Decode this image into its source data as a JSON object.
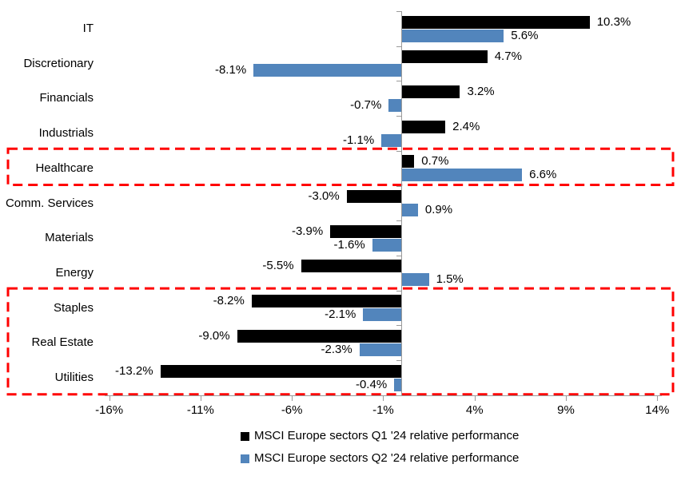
{
  "chart_data": {
    "type": "bar",
    "orientation": "horizontal",
    "title": "",
    "xlabel": "",
    "ylabel": "",
    "grid": false,
    "legend_position": "bottom",
    "categories": [
      "IT",
      "Discretionary",
      "Financials",
      "Industrials",
      "Healthcare",
      "Comm. Services",
      "Materials",
      "Energy",
      "Staples",
      "Real Estate",
      "Utilities"
    ],
    "series": [
      {
        "name": "MSCI Europe sectors Q1 '24 relative performance",
        "color": "#000000",
        "values": [
          10.3,
          4.7,
          3.2,
          2.4,
          0.7,
          -3.0,
          -3.9,
          -5.5,
          -8.2,
          -9.0,
          -13.2
        ],
        "labels": [
          "10.3%",
          "4.7%",
          "3.2%",
          "2.4%",
          "0.7%",
          "-3.0%",
          "-3.9%",
          "-5.5%",
          "-8.2%",
          "-9.0%",
          "-13.2%"
        ]
      },
      {
        "name": "MSCI Europe sectors Q2 '24 relative performance",
        "color": "#5285BC",
        "values": [
          5.6,
          -8.1,
          -0.7,
          -1.1,
          6.6,
          0.9,
          -1.6,
          1.5,
          -2.1,
          -2.3,
          -0.4
        ],
        "labels": [
          "5.6%",
          "-8.1%",
          "-0.7%",
          "-1.1%",
          "6.6%",
          "0.9%",
          "-1.6%",
          "1.5%",
          "-2.1%",
          "-2.3%",
          "-0.4%"
        ]
      }
    ],
    "x_axis": {
      "ticks": [
        -16,
        -11,
        -6,
        -1,
        4,
        9,
        14
      ],
      "tick_labels": [
        "-16%",
        "-11%",
        "-6%",
        "-1%",
        "4%",
        "9%",
        "14%"
      ],
      "range": [
        -17,
        14.5
      ]
    },
    "highlights": [
      {
        "categories": [
          "Healthcare"
        ],
        "color": "#FF0000",
        "style": "dashed"
      },
      {
        "categories": [
          "Staples",
          "Real Estate",
          "Utilities"
        ],
        "color": "#FF0000",
        "style": "dashed"
      }
    ]
  },
  "colors": {
    "bar_q1": "#000000",
    "bar_q2": "#5285BC",
    "highlight": "#FF0000",
    "axis": "#9A9A9A",
    "text": "#000000",
    "background": "#FFFFFF"
  }
}
